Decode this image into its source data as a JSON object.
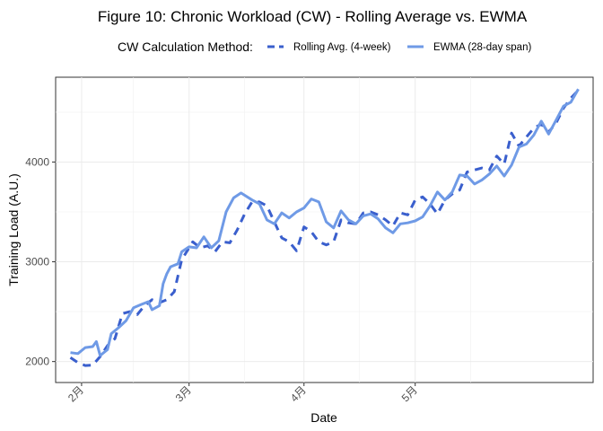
{
  "chart_data": {
    "type": "line",
    "title": "Figure 10: Chronic Workload (CW) - Rolling Average vs. EWMA",
    "xlabel": "Date",
    "ylabel": "Training Load (A.U.)",
    "legend": {
      "title": "CW Calculation Method:",
      "position": "top"
    },
    "x_ticks": [
      "2月",
      "3月",
      "4月",
      "5月"
    ],
    "y_ticks": [
      2000,
      3000,
      4000
    ],
    "ylim": [
      1790,
      4850
    ],
    "grid": true,
    "series": [
      {
        "name": "Rolling Avg. (4-week)",
        "style": "dashed",
        "color": "#3a5fcd",
        "points": [
          [
            "01-29",
            2040
          ],
          [
            "01-31",
            1990
          ],
          [
            "02-02",
            1960
          ],
          [
            "02-04",
            1965
          ],
          [
            "02-06",
            2050
          ],
          [
            "02-08",
            2160
          ],
          [
            "02-10",
            2230
          ],
          [
            "02-12",
            2480
          ],
          [
            "02-14",
            2500
          ],
          [
            "02-16",
            2470
          ],
          [
            "02-18",
            2560
          ],
          [
            "02-20",
            2620
          ],
          [
            "02-22",
            2590
          ],
          [
            "02-24",
            2620
          ],
          [
            "02-26",
            2700
          ],
          [
            "02-28",
            3020
          ],
          [
            "03-02",
            3200
          ],
          [
            "03-04",
            3140
          ],
          [
            "03-06",
            3160
          ],
          [
            "03-08",
            3100
          ],
          [
            "03-10",
            3200
          ],
          [
            "03-12",
            3190
          ],
          [
            "03-14",
            3320
          ],
          [
            "03-16",
            3480
          ],
          [
            "03-18",
            3600
          ],
          [
            "03-20",
            3600
          ],
          [
            "03-22",
            3560
          ],
          [
            "03-24",
            3400
          ],
          [
            "03-26",
            3240
          ],
          [
            "03-28",
            3200
          ],
          [
            "03-30",
            3110
          ],
          [
            "04-01",
            3350
          ],
          [
            "04-03",
            3300
          ],
          [
            "04-05",
            3200
          ],
          [
            "04-07",
            3170
          ],
          [
            "04-09",
            3200
          ],
          [
            "04-11",
            3420
          ],
          [
            "04-13",
            3390
          ],
          [
            "04-15",
            3380
          ],
          [
            "04-17",
            3490
          ],
          [
            "04-19",
            3500
          ],
          [
            "04-21",
            3470
          ],
          [
            "04-23",
            3420
          ],
          [
            "04-25",
            3360
          ],
          [
            "04-27",
            3490
          ],
          [
            "04-29",
            3470
          ],
          [
            "05-01",
            3620
          ],
          [
            "05-03",
            3650
          ],
          [
            "05-05",
            3580
          ],
          [
            "05-07",
            3480
          ],
          [
            "05-09",
            3620
          ],
          [
            "05-11",
            3680
          ],
          [
            "05-13",
            3720
          ],
          [
            "05-15",
            3900
          ],
          [
            "05-17",
            3920
          ],
          [
            "05-19",
            3940
          ],
          [
            "05-21",
            3920
          ],
          [
            "05-23",
            4060
          ],
          [
            "05-25",
            3980
          ],
          [
            "05-27",
            4290
          ],
          [
            "05-29",
            4160
          ],
          [
            "05-31",
            4250
          ],
          [
            "06-02",
            4340
          ],
          [
            "06-04",
            4380
          ],
          [
            "06-06",
            4300
          ],
          [
            "06-08",
            4390
          ],
          [
            "06-10",
            4540
          ],
          [
            "06-12",
            4640
          ],
          [
            "06-14",
            4720
          ]
        ]
      },
      {
        "name": "EWMA (28-day span)",
        "style": "solid",
        "color": "#6f9ae6",
        "points": [
          [
            "01-29",
            2090
          ],
          [
            "01-31",
            2080
          ],
          [
            "02-02",
            2140
          ],
          [
            "02-04",
            2150
          ],
          [
            "02-05",
            2200
          ],
          [
            "02-06",
            2060
          ],
          [
            "02-08",
            2120
          ],
          [
            "02-09",
            2280
          ],
          [
            "02-11",
            2340
          ],
          [
            "02-13",
            2410
          ],
          [
            "02-15",
            2540
          ],
          [
            "02-17",
            2570
          ],
          [
            "02-19",
            2600
          ],
          [
            "02-20",
            2520
          ],
          [
            "02-22",
            2560
          ],
          [
            "02-23",
            2780
          ],
          [
            "02-24",
            2880
          ],
          [
            "02-25",
            2950
          ],
          [
            "02-27",
            2980
          ],
          [
            "02-28",
            3100
          ],
          [
            "03-01",
            3150
          ],
          [
            "03-03",
            3140
          ],
          [
            "03-05",
            3250
          ],
          [
            "03-07",
            3140
          ],
          [
            "03-09",
            3210
          ],
          [
            "03-11",
            3500
          ],
          [
            "03-13",
            3640
          ],
          [
            "03-15",
            3690
          ],
          [
            "03-18",
            3620
          ],
          [
            "03-20",
            3580
          ],
          [
            "03-22",
            3420
          ],
          [
            "03-24",
            3380
          ],
          [
            "03-26",
            3490
          ],
          [
            "03-28",
            3440
          ],
          [
            "03-30",
            3500
          ],
          [
            "04-01",
            3540
          ],
          [
            "04-03",
            3630
          ],
          [
            "04-05",
            3600
          ],
          [
            "04-07",
            3400
          ],
          [
            "04-09",
            3340
          ],
          [
            "04-11",
            3510
          ],
          [
            "04-13",
            3420
          ],
          [
            "04-15",
            3380
          ],
          [
            "04-17",
            3460
          ],
          [
            "04-19",
            3480
          ],
          [
            "04-21",
            3430
          ],
          [
            "04-23",
            3340
          ],
          [
            "04-25",
            3290
          ],
          [
            "04-27",
            3380
          ],
          [
            "04-29",
            3390
          ],
          [
            "05-01",
            3410
          ],
          [
            "05-03",
            3450
          ],
          [
            "05-05",
            3560
          ],
          [
            "05-07",
            3700
          ],
          [
            "05-09",
            3620
          ],
          [
            "05-11",
            3700
          ],
          [
            "05-13",
            3870
          ],
          [
            "05-15",
            3860
          ],
          [
            "05-17",
            3780
          ],
          [
            "05-19",
            3820
          ],
          [
            "05-21",
            3880
          ],
          [
            "05-23",
            3960
          ],
          [
            "05-25",
            3860
          ],
          [
            "05-27",
            3970
          ],
          [
            "05-29",
            4150
          ],
          [
            "05-31",
            4180
          ],
          [
            "06-02",
            4270
          ],
          [
            "06-04",
            4410
          ],
          [
            "06-06",
            4280
          ],
          [
            "06-08",
            4420
          ],
          [
            "06-10",
            4560
          ],
          [
            "06-12",
            4600
          ],
          [
            "06-14",
            4730
          ]
        ]
      }
    ]
  }
}
